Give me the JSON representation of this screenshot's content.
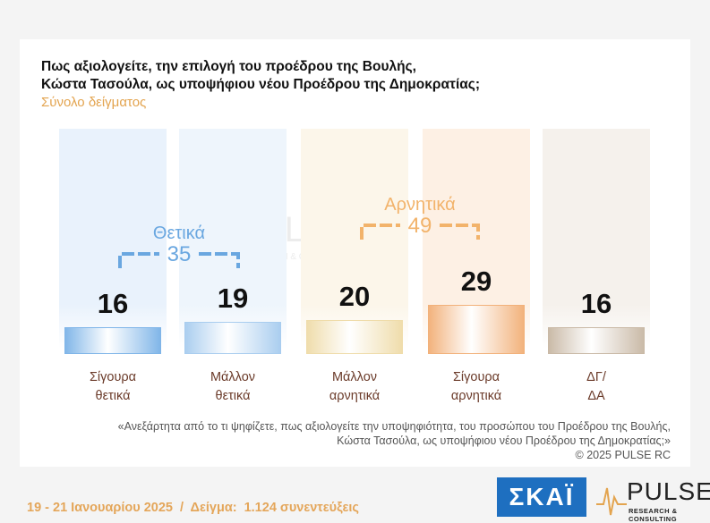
{
  "header": {
    "title_line1": "Πως αξιολογείτε, την επιλογή του προέδρου της Βουλής,",
    "title_line2": "Κώστα Τασούλα, ως υποψήφιου νέου Προέδρου της Δημοκρατίας;",
    "subtitle": "Σύνολο δείγματος"
  },
  "chart_data": {
    "type": "bar",
    "title": "Πως αξιολογείτε, την επιλογή του προέδρου της Βουλής, Κώστα Τασούλα, ως υποψήφιου νέου Προέδρου της Δημοκρατίας;",
    "categories": [
      [
        "Σίγουρα",
        "θετικά"
      ],
      [
        "Μάλλον",
        "θετικά"
      ],
      [
        "Μάλλον",
        "αρνητικά"
      ],
      [
        "Σίγουρα",
        "αρνητικά"
      ],
      [
        "ΔΓ/",
        "ΔΑ"
      ]
    ],
    "values": [
      16,
      19,
      20,
      29,
      16
    ],
    "value_labels": [
      "16",
      "19",
      "20",
      "29",
      "16"
    ],
    "colors": [
      "#7fb5e8",
      "#a9cdef",
      "#efdcaa",
      "#f2b17a",
      "#c9b9a6"
    ],
    "bg_colors": [
      "#e9f2fc",
      "#eef5fc",
      "#fcf6ea",
      "#fdf0e4",
      "#f5f1ec"
    ],
    "ylim": [
      0,
      100
    ],
    "groups": [
      {
        "label": "Θετικά",
        "value": "35",
        "color": "#6aa7e0"
      },
      {
        "label": "Αρνητικά",
        "value": "49",
        "color": "#f2b36b"
      }
    ]
  },
  "watermark": {
    "name": "PULSE",
    "sub": "RESEARCH & CONSULTING"
  },
  "footnote": {
    "line1": "«Ανεξάρτητα από το τι ψηφίζετε, πως αξιολογείτε την υποψηφιότητα, του προσώπου του Προέδρου της Βουλής,",
    "line2": "Κώστα Τασούλα, ως υποψήφιου νέου Προέδρου της Δημοκρατίας;»",
    "line3": "©  2025  PULSE RC"
  },
  "footer": {
    "dates": "19 - 21 Ιανουαρίου 2025",
    "separator": "/",
    "sample_label": "Δείγμα:",
    "sample_value": "1.124 συνεντεύξεις"
  },
  "logos": {
    "skai": "ΣΚΑΪ",
    "pulse_name": "PULSE",
    "pulse_sub": "RESEARCH & CONSULTING"
  }
}
